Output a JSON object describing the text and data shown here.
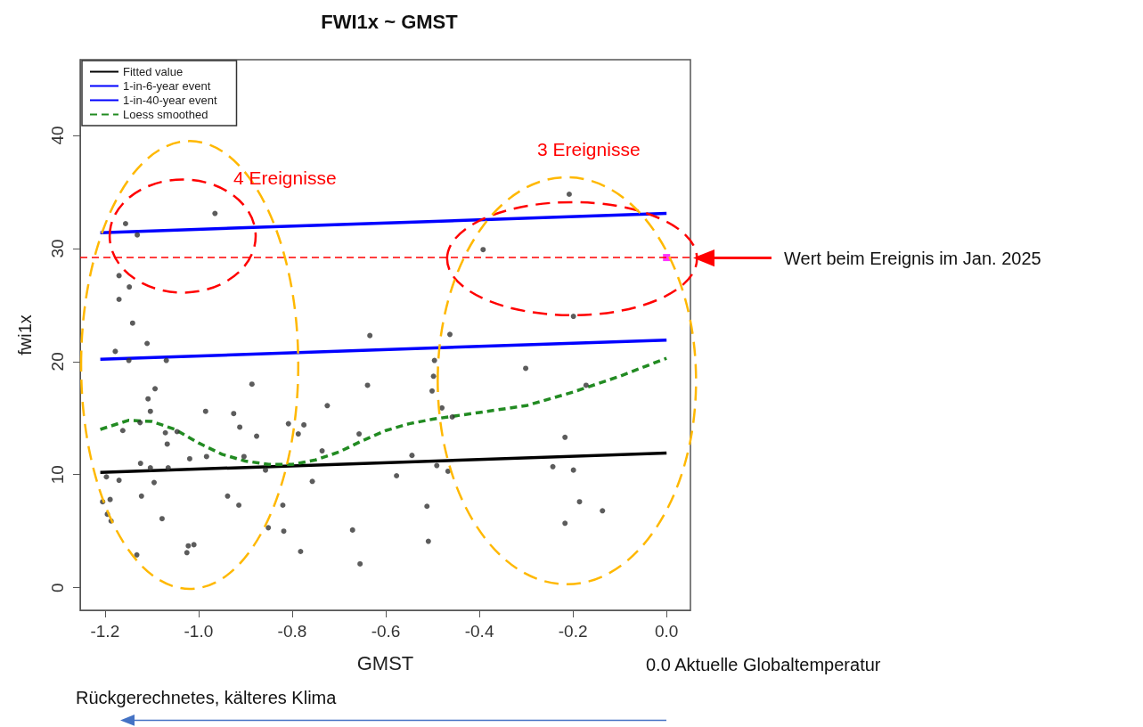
{
  "chart_data": {
    "type": "scatter",
    "title": "FWI1x ~ GMST",
    "xlabel": "GMST",
    "ylabel": "fwi1x",
    "xlim": [
      -1.253,
      0.051
    ],
    "ylim": [
      -2,
      46.7
    ],
    "xticks": [
      {
        "value": -1.2,
        "label": "-1.2"
      },
      {
        "value": -1,
        "label": "-1.0"
      },
      {
        "value": -0.8,
        "label": "-0.8"
      },
      {
        "value": -0.6,
        "label": "-0.6"
      },
      {
        "value": -0.4,
        "label": "-0.4"
      },
      {
        "value": -0.2,
        "label": "-0.2"
      },
      {
        "value": 0,
        "label": "0.0"
      }
    ],
    "yticks": [
      0,
      10,
      20,
      30,
      40
    ],
    "grid": false,
    "legend": "top left",
    "series": [
      {
        "marker": "circle",
        "color": "#333333",
        "x": [
          -0.965,
          -1.156,
          -1.131,
          -1.17,
          -1.148,
          -1.17,
          -1.141,
          -1.11,
          -1.178,
          -1.069,
          -1.149,
          -0.886,
          -1.093,
          -1.108,
          -1.103,
          -0.985,
          -0.925,
          -0.912,
          -1.162,
          -1.125,
          -1.071,
          -1.046,
          -1.067,
          -0.808,
          -0.787,
          -0.876,
          -1.019,
          -0.983,
          -0.903,
          -1.124,
          -1.103,
          -1.065,
          -0.857,
          -1.197,
          -1.17,
          -1.095,
          -1.122,
          -0.938,
          -0.914,
          -0.82,
          -1.205,
          -1.189,
          -1.195,
          -1.187,
          -1.078,
          -0.851,
          -0.818,
          -0.782,
          -1.01,
          -1.022,
          -1.025,
          -1.132,
          -0.634,
          -0.463,
          -0.496,
          -0.498,
          -0.639,
          -0.501,
          -0.725,
          -0.48,
          -0.458,
          -0.775,
          -0.657,
          -0.736,
          -0.544,
          -0.491,
          -0.467,
          -0.577,
          -0.757,
          -0.512,
          -0.671,
          -0.509,
          -0.655,
          -0.208,
          -0.392,
          -0.199,
          -0.301,
          -0.172,
          -0.217,
          -0.243,
          -0.199,
          -0.186,
          -0.137,
          -0.217
        ],
        "values": [
          33.1,
          32.2,
          31.2,
          27.6,
          26.6,
          25.5,
          23.4,
          21.6,
          20.9,
          20.1,
          20.1,
          18,
          17.6,
          16.7,
          15.6,
          15.6,
          15.4,
          14.2,
          13.9,
          14.6,
          13.7,
          13.8,
          12.7,
          14.5,
          13.6,
          13.4,
          11.4,
          11.6,
          11.6,
          11,
          10.6,
          10.6,
          10.4,
          9.8,
          9.5,
          9.3,
          8.1,
          8.1,
          7.3,
          7.3,
          7.6,
          7.8,
          6.5,
          5.9,
          6.1,
          5.3,
          5,
          3.2,
          3.8,
          3.7,
          3.1,
          2.9,
          22.3,
          22.4,
          20.1,
          18.7,
          17.9,
          17.4,
          16.1,
          15.9,
          15.1,
          14.4,
          13.6,
          12.1,
          11.7,
          10.8,
          10.3,
          9.9,
          9.4,
          7.2,
          5.1,
          4.1,
          2.1,
          34.8,
          29.9,
          24,
          19.4,
          17.9,
          13.3,
          10.7,
          10.4,
          7.6,
          6.8,
          5.7
        ]
      },
      {
        "color": "#ff00ff",
        "marker": "square",
        "x": [
          0
        ],
        "values": [
          29.2
        ]
      },
      {
        "type": "line",
        "name": "Fitted value",
        "color": "#000000",
        "x": [
          -1.21,
          0
        ],
        "values": [
          10.2,
          11.9
        ]
      },
      {
        "type": "line",
        "name": "1-in-6-year event",
        "color": "#0000ff",
        "x": [
          -1.21,
          0
        ],
        "values": [
          20.2,
          21.9
        ]
      },
      {
        "type": "line",
        "name": "1-in-40-year event",
        "color": "#0000ff",
        "x": [
          -1.21,
          0
        ],
        "values": [
          31.4,
          33.1
        ]
      },
      {
        "type": "line",
        "name": "Loess smoothed",
        "color": "#228b22",
        "line_style": "dashed",
        "x": [
          -1.21,
          -1.15,
          -1.1,
          -1.05,
          -1,
          -0.95,
          -0.9,
          -0.85,
          -0.8,
          -0.75,
          -0.7,
          -0.65,
          -0.6,
          -0.55,
          -0.5,
          -0.45,
          -0.4,
          -0.3,
          -0.2,
          -0.1,
          0
        ],
        "values": [
          14,
          14.8,
          14.7,
          14,
          12.8,
          11.8,
          11.2,
          10.9,
          10.9,
          11.3,
          12,
          13,
          13.9,
          14.5,
          14.9,
          15.2,
          15.5,
          16.1,
          17.3,
          18.7,
          20.3
        ]
      }
    ],
    "ref_lines": [
      {
        "axis": "y",
        "value": 29.2,
        "color": "#ff0000",
        "line_style": "dashed"
      }
    ],
    "annotations": [
      "4 Ereignisse",
      "3 Ereignisse",
      "0.0 Aktuelle Globaltemperatur",
      "Rückgerechnetes, kälteres Klima",
      "Wert beim Ereignis im Jan. 2025"
    ]
  }
}
